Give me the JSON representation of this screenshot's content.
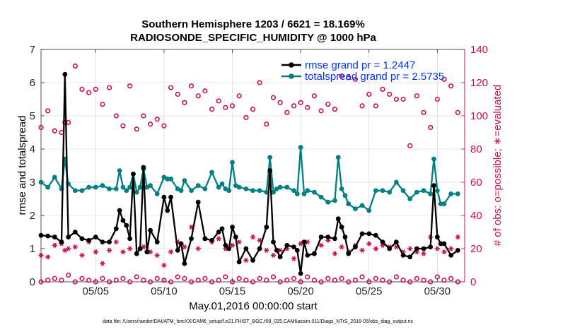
{
  "chart_data": {
    "type": "line",
    "title": "Southern Hemisphere 1203 / 6621 = 18.169%",
    "subtitle": "RADIOSONDE_SPECIFIC_HUMIDITY @ 1000 hPa",
    "xlabel": "May.01,2016 00:00:00 start",
    "ylabel_left": "rmse and totalspread",
    "ylabel_right": "# of obs: o=possible; ∗=evaluated",
    "footnote": "data file: /Users/raeder/DAI/ATM_forcXX/CAM6_setup/f.e21.FHIST_BGC.f09_025.CAM6assim.011/Diags_NTrS_2016-05/obs_diag_output.nc",
    "xlim": [
      1,
      32
    ],
    "ylim_left": [
      0,
      7
    ],
    "ylim_right": [
      0,
      140
    ],
    "x_ticks": [
      {
        "value": 5,
        "label": "05/05"
      },
      {
        "value": 10,
        "label": "05/10"
      },
      {
        "value": 15,
        "label": "05/15"
      },
      {
        "value": 20,
        "label": "05/20"
      },
      {
        "value": 25,
        "label": "05/25"
      },
      {
        "value": 30,
        "label": "05/30"
      }
    ],
    "y_ticks_left": [
      0,
      1,
      2,
      3,
      4,
      5,
      6,
      7
    ],
    "y_ticks_right": [
      0,
      20,
      40,
      60,
      80,
      100,
      120,
      140
    ],
    "grid": true,
    "legend_position": "top-right",
    "colors": {
      "rmse": "#000000",
      "spread": "#008080",
      "obs": "#cc0a55"
    },
    "series": [
      {
        "name": "rmse grand pr = 1.2447",
        "axis": "left",
        "x": [
          1.0,
          1.5,
          2.0,
          2.5,
          2.75,
          3.0,
          3.5,
          4.0,
          4.5,
          5.0,
          5.5,
          6.0,
          6.5,
          6.75,
          7.0,
          7.25,
          7.5,
          7.75,
          8.0,
          8.25,
          8.5,
          8.75,
          9.0,
          9.5,
          10.0,
          10.25,
          10.5,
          11.0,
          11.25,
          11.5,
          12.0,
          12.5,
          13.0,
          13.5,
          14.0,
          14.25,
          14.5,
          14.75,
          15.0,
          15.25,
          15.5,
          16.0,
          16.5,
          17.0,
          17.5,
          17.75,
          18.0,
          18.25,
          18.5,
          19.0,
          19.5,
          19.75,
          20.0,
          20.25,
          20.5,
          21.0,
          21.5,
          22.0,
          22.5,
          22.75,
          23.0,
          23.25,
          23.5,
          24.0,
          24.5,
          25.0,
          25.5,
          26.0,
          26.5,
          27.0,
          27.5,
          28.0,
          28.5,
          29.0,
          29.5,
          29.75,
          30.0,
          30.25,
          30.5,
          31.0,
          31.5
        ],
        "values": [
          1.4,
          1.38,
          1.35,
          1.2,
          6.25,
          1.35,
          1.5,
          1.3,
          1.25,
          1.35,
          1.2,
          1.2,
          1.6,
          2.15,
          1.85,
          1.7,
          1.3,
          3.25,
          0.85,
          1.0,
          3.45,
          0.9,
          1.55,
          1.2,
          2.55,
          2.15,
          2.55,
          0.95,
          1.15,
          0.55,
          1.3,
          2.4,
          1.3,
          1.25,
          1.5,
          1.6,
          1.1,
          1.0,
          1.65,
          1.35,
          0.6,
          1.0,
          0.65,
          1.0,
          1.65,
          3.35,
          1.2,
          0.95,
          0.75,
          1.1,
          1.05,
          0.95,
          0.25,
          1.2,
          0.8,
          0.85,
          1.35,
          1.35,
          1.3,
          1.9,
          1.65,
          1.35,
          0.85,
          1.05,
          1.45,
          1.45,
          1.4,
          1.2,
          1.0,
          1.2,
          0.8,
          0.75,
          1.0,
          1.0,
          1.05,
          2.9,
          1.35,
          1.15,
          1.15,
          0.8,
          0.95
        ]
      },
      {
        "name": "totalspread grand pr = 2.5735",
        "axis": "left",
        "x": [
          1.0,
          1.5,
          2.0,
          2.5,
          2.75,
          3.0,
          3.5,
          4.0,
          4.5,
          5.0,
          5.5,
          6.0,
          6.5,
          6.75,
          7.0,
          7.25,
          7.5,
          7.75,
          8.0,
          8.25,
          8.5,
          8.75,
          9.0,
          9.5,
          10.0,
          10.25,
          10.5,
          11.0,
          11.25,
          11.5,
          12.0,
          12.5,
          13.0,
          13.5,
          14.0,
          14.25,
          14.5,
          14.75,
          15.0,
          15.25,
          15.5,
          16.0,
          16.5,
          17.0,
          17.5,
          17.75,
          18.0,
          18.25,
          18.5,
          19.0,
          19.5,
          19.75,
          20.0,
          20.25,
          20.5,
          21.0,
          21.5,
          22.0,
          22.5,
          22.75,
          23.0,
          23.25,
          23.5,
          24.0,
          24.5,
          25.0,
          25.5,
          26.0,
          26.5,
          27.0,
          27.5,
          28.0,
          28.5,
          29.0,
          29.5,
          29.75,
          30.0,
          30.25,
          30.5,
          31.0,
          31.5
        ],
        "values": [
          3.0,
          2.85,
          3.15,
          2.8,
          3.7,
          2.95,
          2.75,
          2.75,
          2.85,
          2.85,
          2.9,
          2.8,
          2.8,
          3.35,
          2.85,
          2.75,
          2.85,
          3.25,
          2.7,
          2.85,
          3.4,
          2.85,
          2.9,
          2.65,
          3.15,
          3.1,
          3.1,
          2.8,
          2.75,
          3.05,
          2.75,
          2.9,
          2.8,
          3.3,
          2.85,
          2.95,
          2.8,
          2.75,
          3.6,
          2.9,
          2.85,
          2.8,
          2.75,
          2.75,
          2.7,
          3.75,
          2.7,
          2.8,
          2.85,
          2.85,
          2.75,
          2.65,
          4.05,
          2.65,
          2.75,
          2.7,
          2.55,
          2.4,
          2.45,
          3.75,
          2.8,
          2.6,
          2.35,
          2.2,
          2.3,
          2.15,
          2.75,
          2.75,
          2.7,
          3.0,
          2.75,
          2.5,
          2.7,
          2.75,
          2.65,
          3.7,
          2.75,
          2.35,
          2.35,
          2.65,
          2.65
        ]
      },
      {
        "name": "possible",
        "axis": "right",
        "marker": "circle",
        "x": [
          1.0,
          1.5,
          2.0,
          2.5,
          2.75,
          3.0,
          3.5,
          4.0,
          4.5,
          5.0,
          5.5,
          6.0,
          6.5,
          7.0,
          7.5,
          8.0,
          8.5,
          9.0,
          9.5,
          10.0,
          10.5,
          11.0,
          11.5,
          12.0,
          12.5,
          13.0,
          13.5,
          14.0,
          14.5,
          15.0,
          15.5,
          16.0,
          16.5,
          17.0,
          17.5,
          18.0,
          18.5,
          19.0,
          19.5,
          20.0,
          20.5,
          21.0,
          21.5,
          22.0,
          22.5,
          23.0,
          23.5,
          24.0,
          24.5,
          25.0,
          25.5,
          26.0,
          26.5,
          27.0,
          27.5,
          28.0,
          28.5,
          29.0,
          29.5,
          30.0,
          30.5,
          31.0,
          31.5
        ],
        "values": [
          93,
          103,
          91,
          90,
          96,
          96,
          130,
          116,
          114,
          116,
          107,
          117,
          100,
          94,
          118,
          92,
          100,
          95,
          98,
          94,
          117,
          113,
          108,
          118,
          112,
          115,
          104,
          109,
          105,
          106,
          112,
          99,
          104,
          120,
          95,
          111,
          108,
          102,
          106,
          108,
          105,
          112,
          103,
          107,
          104,
          124,
          123,
          122,
          106,
          113,
          106,
          116,
          113,
          110,
          110,
          82,
          112,
          102,
          93,
          110,
          122,
          118,
          102
        ]
      },
      {
        "name": "evaluated",
        "axis": "right",
        "marker": "asterisk",
        "x": [
          1.0,
          1.5,
          2.0,
          2.5,
          2.75,
          3.0,
          3.5,
          4.0,
          4.5,
          5.0,
          5.5,
          6.0,
          6.5,
          7.0,
          7.5,
          8.0,
          8.5,
          9.0,
          9.5,
          10.0,
          10.5,
          11.0,
          11.5,
          12.0,
          12.5,
          13.0,
          13.5,
          14.0,
          14.5,
          15.0,
          15.5,
          16.0,
          16.5,
          17.0,
          17.5,
          18.0,
          18.5,
          19.0,
          19.5,
          20.0,
          20.5,
          21.0,
          21.5,
          22.0,
          22.5,
          23.0,
          23.5,
          24.0,
          24.5,
          25.0,
          25.5,
          26.0,
          26.5,
          27.0,
          27.5,
          28.0,
          28.5,
          29.0,
          29.5,
          30.0,
          30.5,
          31.0,
          31.5
        ],
        "values": [
          16,
          15,
          22,
          23,
          19,
          20,
          21,
          16,
          24,
          18,
          11,
          19,
          24,
          18,
          20,
          17,
          21,
          18,
          16,
          10,
          18,
          24,
          21,
          33,
          20,
          26,
          24,
          26,
          20,
          22,
          24,
          13,
          27,
          25,
          19,
          16,
          19,
          20,
          14,
          23,
          24,
          17,
          22,
          25,
          17,
          21,
          18,
          22,
          19,
          23,
          20,
          22,
          21,
          21,
          18,
          20,
          18,
          17,
          27,
          20,
          18,
          20,
          27
        ]
      },
      {
        "name": "possible zero line",
        "axis": "right",
        "marker": "circle",
        "x": [
          1.0,
          1.5,
          2.0,
          2.5,
          3.0,
          3.5,
          4.0,
          4.5,
          5.0,
          5.5,
          6.0,
          6.5,
          7.0,
          7.5,
          8.0,
          8.5,
          9.0,
          9.5,
          10.0,
          10.5,
          11.0,
          11.5,
          12.0,
          12.5,
          13.0,
          13.5,
          14.0,
          14.5,
          15.0,
          15.5,
          16.0,
          16.5,
          17.0,
          17.5,
          18.0,
          18.5,
          19.0,
          19.5,
          20.0,
          20.5,
          21.0,
          21.5,
          22.0,
          22.5,
          23.0,
          23.5,
          24.0,
          24.5,
          25.0,
          25.5,
          26.0,
          26.5,
          27.0,
          27.5,
          28.0,
          28.5,
          29.0,
          29.5,
          30.0,
          30.5,
          31.0,
          31.5
        ],
        "values": [
          0,
          1,
          2,
          1,
          4,
          0,
          2,
          1,
          0,
          2,
          0,
          1,
          2,
          0,
          3,
          1,
          0,
          2,
          1,
          0,
          3,
          2,
          0,
          1,
          2,
          0,
          1,
          3,
          0,
          2,
          1,
          0,
          2,
          1,
          3,
          0,
          1,
          2,
          0,
          3,
          1,
          0,
          2,
          1,
          2,
          0,
          1,
          3,
          0,
          2,
          1,
          0,
          3,
          1,
          0,
          2,
          1,
          0,
          3,
          1,
          2,
          0
        ]
      }
    ]
  }
}
